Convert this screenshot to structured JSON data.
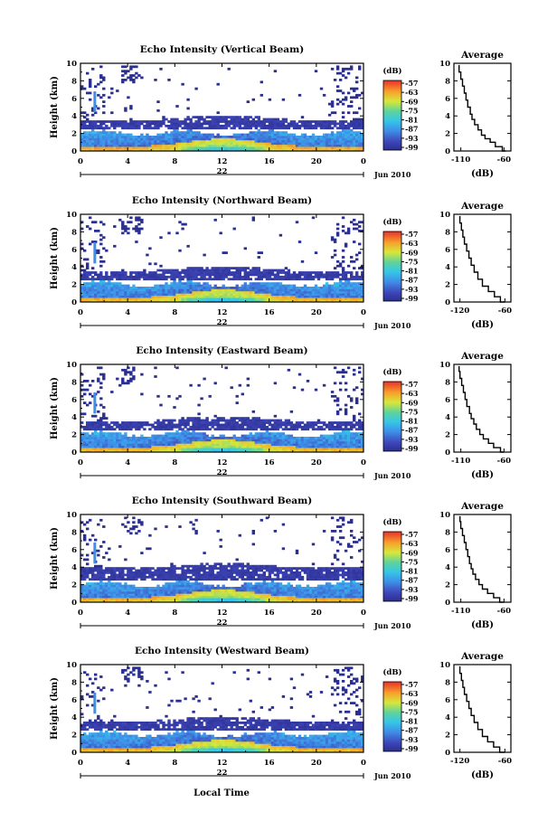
{
  "figure": {
    "xlabel": "Local Time",
    "date_label": "Jun 2010",
    "day_label": "22",
    "colorbar_unit": "(dB)",
    "profile_title": "Average",
    "profile_xlabel": "(dB)"
  },
  "chart_data": [
    {
      "type": "heatmap",
      "title": "Echo Intensity (Vertical Beam)",
      "xlabel": "Local Time",
      "ylabel": "Height (km)",
      "xlim": [
        0,
        24
      ],
      "ylim": [
        0,
        10
      ],
      "xticks": [
        "0",
        "4",
        "8",
        "12",
        "16",
        "20",
        "0"
      ],
      "yticks": [
        "0",
        "2",
        "4",
        "6",
        "8",
        "10"
      ],
      "colorbar": {
        "label": "(dB)",
        "ticks": [
          "-57",
          "-63",
          "-69",
          "-75",
          "-81",
          "-87",
          "-93",
          "-99"
        ]
      },
      "layers": [
        {
          "name": "scattered echoes",
          "h_bottom_km": 3.2,
          "h_top_km": 9.6,
          "intensity_db": -99
        },
        {
          "name": "upper layer",
          "h_bottom_km": 2.6,
          "h_top_km": 3.4,
          "intensity_db": -96
        },
        {
          "name": "boundary layer",
          "h_bottom_km": 0.0,
          "h_top_km": 2.4,
          "intensity_db": -90
        },
        {
          "name": "surface maximum",
          "h_bottom_km": 0.0,
          "h_top_km": 1.0,
          "intensity_db": -78
        }
      ],
      "profile": {
        "title": "Average",
        "xlabel": "(dB)",
        "xlim": [
          -118,
          -52
        ],
        "ylim": [
          0,
          10
        ],
        "xticks": [
          "-110",
          "-60"
        ],
        "yticks": [
          "0",
          "2",
          "4",
          "6",
          "8",
          "10"
        ],
        "points": [
          [
            -58,
            0
          ],
          [
            -62,
            0.5
          ],
          [
            -70,
            1.0
          ],
          [
            -76,
            1.4
          ],
          [
            -82,
            1.8
          ],
          [
            -86,
            2.4
          ],
          [
            -90,
            3.0
          ],
          [
            -94,
            3.6
          ],
          [
            -97,
            4.2
          ],
          [
            -99,
            5.0
          ],
          [
            -102,
            5.8
          ],
          [
            -104,
            6.6
          ],
          [
            -106,
            7.4
          ],
          [
            -108,
            8.2
          ],
          [
            -110,
            9.0
          ],
          [
            -112,
            9.8
          ]
        ]
      }
    },
    {
      "type": "heatmap",
      "title": "Echo Intensity (Northward Beam)",
      "xlabel": "Local Time",
      "ylabel": "Height (km)",
      "xlim": [
        0,
        24
      ],
      "ylim": [
        0,
        10
      ],
      "xticks": [
        "0",
        "4",
        "8",
        "12",
        "16",
        "20",
        "0"
      ],
      "yticks": [
        "0",
        "2",
        "4",
        "6",
        "8",
        "10"
      ],
      "colorbar": {
        "label": "(dB)",
        "ticks": [
          "-57",
          "-63",
          "-69",
          "-75",
          "-81",
          "-87",
          "-93",
          "-99"
        ]
      },
      "layers": [
        {
          "name": "scattered echoes",
          "h_bottom_km": 3.2,
          "h_top_km": 9.6,
          "intensity_db": -99
        },
        {
          "name": "upper layer",
          "h_bottom_km": 2.6,
          "h_top_km": 3.4,
          "intensity_db": -96
        },
        {
          "name": "boundary layer",
          "h_bottom_km": 0.0,
          "h_top_km": 2.4,
          "intensity_db": -90
        },
        {
          "name": "surface maximum",
          "h_bottom_km": 0.0,
          "h_top_km": 1.0,
          "intensity_db": -78
        }
      ],
      "profile": {
        "title": "Average",
        "xlabel": "(dB)",
        "xlim": [
          -128,
          -52
        ],
        "ylim": [
          0,
          10
        ],
        "xticks": [
          "-120",
          "-60"
        ],
        "yticks": [
          "0",
          "2",
          "4",
          "6",
          "8",
          "10"
        ],
        "points": [
          [
            -60,
            0
          ],
          [
            -66,
            0.6
          ],
          [
            -74,
            1.2
          ],
          [
            -82,
            1.8
          ],
          [
            -90,
            2.6
          ],
          [
            -96,
            3.4
          ],
          [
            -101,
            4.2
          ],
          [
            -105,
            5.0
          ],
          [
            -108,
            5.8
          ],
          [
            -111,
            6.6
          ],
          [
            -114,
            7.4
          ],
          [
            -116,
            8.2
          ],
          [
            -118,
            9.0
          ],
          [
            -120,
            9.8
          ]
        ]
      }
    },
    {
      "type": "heatmap",
      "title": "Echo Intensity (Eastward Beam)",
      "xlabel": "Local Time",
      "ylabel": "Height (km)",
      "xlim": [
        0,
        24
      ],
      "ylim": [
        0,
        10
      ],
      "xticks": [
        "0",
        "4",
        "8",
        "12",
        "16",
        "20",
        "0"
      ],
      "yticks": [
        "0",
        "2",
        "4",
        "6",
        "8",
        "10"
      ],
      "colorbar": {
        "label": "(dB)",
        "ticks": [
          "-57",
          "-63",
          "-69",
          "-75",
          "-81",
          "-87",
          "-93",
          "-99"
        ]
      },
      "layers": [
        {
          "name": "scattered echoes",
          "h_bottom_km": 3.2,
          "h_top_km": 9.6,
          "intensity_db": -99
        },
        {
          "name": "upper layer",
          "h_bottom_km": 2.6,
          "h_top_km": 3.4,
          "intensity_db": -96
        },
        {
          "name": "boundary layer",
          "h_bottom_km": 0.0,
          "h_top_km": 2.4,
          "intensity_db": -90
        },
        {
          "name": "surface maximum",
          "h_bottom_km": 0.0,
          "h_top_km": 1.0,
          "intensity_db": -78
        }
      ],
      "profile": {
        "title": "Average",
        "xlabel": "(dB)",
        "xlim": [
          -118,
          -52
        ],
        "ylim": [
          0,
          10
        ],
        "xticks": [
          "-110",
          "-60"
        ],
        "yticks": [
          "0",
          "2",
          "4",
          "6",
          "8",
          "10"
        ],
        "points": [
          [
            -60,
            0
          ],
          [
            -64,
            0.5
          ],
          [
            -72,
            1.0
          ],
          [
            -78,
            1.5
          ],
          [
            -84,
            2.0
          ],
          [
            -88,
            2.6
          ],
          [
            -92,
            3.2
          ],
          [
            -95,
            3.8
          ],
          [
            -98,
            4.4
          ],
          [
            -100,
            5.2
          ],
          [
            -103,
            6.0
          ],
          [
            -105,
            6.8
          ],
          [
            -107,
            7.6
          ],
          [
            -109,
            8.4
          ],
          [
            -111,
            9.2
          ],
          [
            -112,
            9.8
          ]
        ]
      }
    },
    {
      "type": "heatmap",
      "title": "Echo Intensity (Southward Beam)",
      "xlabel": "Local Time",
      "ylabel": "Height (km)",
      "xlim": [
        0,
        24
      ],
      "ylim": [
        0,
        10
      ],
      "xticks": [
        "0",
        "4",
        "8",
        "12",
        "16",
        "20",
        "0"
      ],
      "yticks": [
        "0",
        "2",
        "4",
        "6",
        "8",
        "10"
      ],
      "colorbar": {
        "label": "(dB)",
        "ticks": [
          "-57",
          "-63",
          "-69",
          "-75",
          "-81",
          "-87",
          "-93",
          "-99"
        ]
      },
      "layers": [
        {
          "name": "scattered echoes",
          "h_bottom_km": 3.2,
          "h_top_km": 9.6,
          "intensity_db": -99
        },
        {
          "name": "upper layer",
          "h_bottom_km": 2.6,
          "h_top_km": 3.8,
          "intensity_db": -96
        },
        {
          "name": "boundary layer",
          "h_bottom_km": 0.0,
          "h_top_km": 2.4,
          "intensity_db": -90
        },
        {
          "name": "surface maximum",
          "h_bottom_km": 0.0,
          "h_top_km": 1.0,
          "intensity_db": -78
        }
      ],
      "profile": {
        "title": "Average",
        "xlabel": "(dB)",
        "xlim": [
          -118,
          -52
        ],
        "ylim": [
          0,
          10
        ],
        "xticks": [
          "-110",
          "-60"
        ],
        "yticks": [
          "0",
          "2",
          "4",
          "6",
          "8",
          "10"
        ],
        "points": [
          [
            -60,
            0
          ],
          [
            -65,
            0.5
          ],
          [
            -72,
            1.0
          ],
          [
            -79,
            1.5
          ],
          [
            -85,
            2.0
          ],
          [
            -89,
            2.6
          ],
          [
            -93,
            3.2
          ],
          [
            -96,
            3.8
          ],
          [
            -98,
            4.4
          ],
          [
            -100,
            5.2
          ],
          [
            -102,
            6.0
          ],
          [
            -104,
            6.8
          ],
          [
            -106,
            7.6
          ],
          [
            -108,
            8.4
          ],
          [
            -110,
            9.2
          ],
          [
            -111,
            9.8
          ]
        ]
      }
    },
    {
      "type": "heatmap",
      "title": "Echo Intensity (Westward Beam)",
      "xlabel": "Local Time",
      "ylabel": "Height (km)",
      "xlim": [
        0,
        24
      ],
      "ylim": [
        0,
        10
      ],
      "xticks": [
        "0",
        "4",
        "8",
        "12",
        "16",
        "20",
        "0"
      ],
      "yticks": [
        "0",
        "2",
        "4",
        "6",
        "8",
        "10"
      ],
      "colorbar": {
        "label": "(dB)",
        "ticks": [
          "-57",
          "-63",
          "-69",
          "-75",
          "-81",
          "-87",
          "-93",
          "-99"
        ]
      },
      "layers": [
        {
          "name": "scattered echoes",
          "h_bottom_km": 3.2,
          "h_top_km": 9.6,
          "intensity_db": -99
        },
        {
          "name": "upper layer",
          "h_bottom_km": 2.6,
          "h_top_km": 3.4,
          "intensity_db": -96
        },
        {
          "name": "boundary layer",
          "h_bottom_km": 0.0,
          "h_top_km": 2.4,
          "intensity_db": -90
        },
        {
          "name": "surface maximum",
          "h_bottom_km": 0.0,
          "h_top_km": 1.0,
          "intensity_db": -78
        }
      ],
      "profile": {
        "title": "Average",
        "xlabel": "(dB)",
        "xlim": [
          -128,
          -52
        ],
        "ylim": [
          0,
          10
        ],
        "xticks": [
          "-120",
          "-60"
        ],
        "yticks": [
          "0",
          "2",
          "4",
          "6",
          "8",
          "10"
        ],
        "points": [
          [
            -60,
            0
          ],
          [
            -67,
            0.6
          ],
          [
            -75,
            1.2
          ],
          [
            -83,
            1.8
          ],
          [
            -90,
            2.6
          ],
          [
            -96,
            3.4
          ],
          [
            -101,
            4.2
          ],
          [
            -105,
            5.0
          ],
          [
            -108,
            5.8
          ],
          [
            -111,
            6.6
          ],
          [
            -114,
            7.4
          ],
          [
            -116,
            8.2
          ],
          [
            -118,
            9.0
          ],
          [
            -120,
            9.8
          ]
        ]
      }
    }
  ]
}
